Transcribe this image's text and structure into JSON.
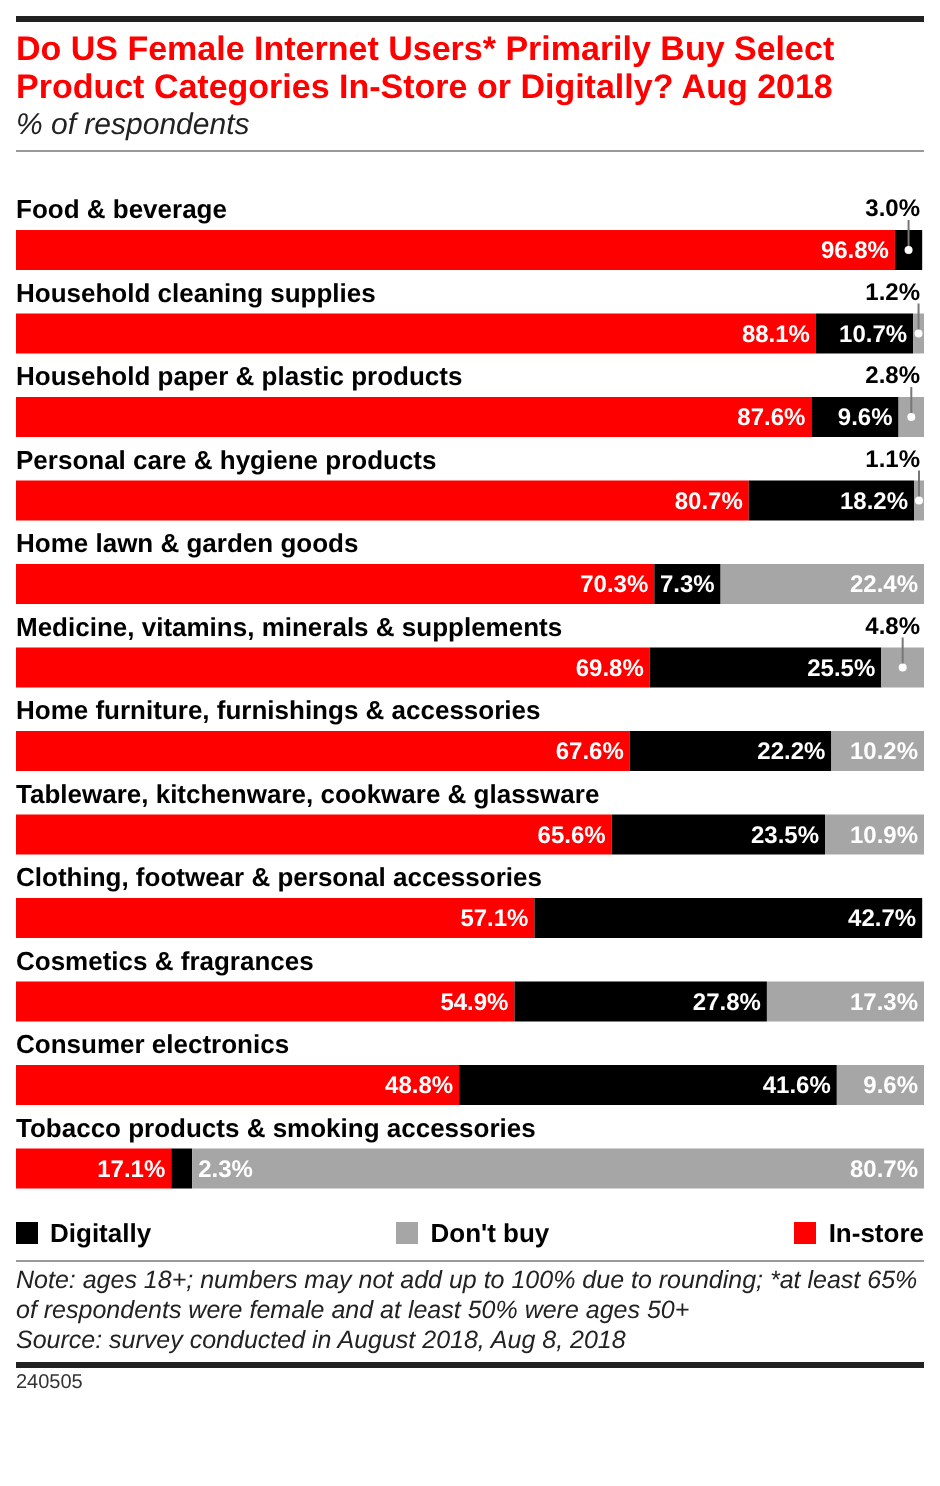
{
  "chart_data": {
    "type": "bar",
    "orientation": "horizontal",
    "stacked": true,
    "title": "Do US Female Internet Users* Primarily Buy Select Product Categories In-Store or Digitally? Aug 2018",
    "subtitle": "% of respondents",
    "categories": [
      "Food & beverage",
      "Household cleaning supplies",
      "Household paper & plastic products",
      "Personal care & hygiene products",
      "Home lawn & garden goods",
      "Medicine, vitamins, minerals & supplements",
      "Home furniture, furnishings & accessories",
      "Tableware, kitchenware, cookware & glassware",
      "Clothing, footwear & personal accessories",
      "Cosmetics & fragrances",
      "Consumer electronics",
      "Tobacco products & smoking accessories"
    ],
    "series": [
      {
        "name": "In-store",
        "color": "#ff0000",
        "values": [
          96.8,
          88.1,
          87.6,
          80.7,
          70.3,
          69.8,
          67.6,
          65.6,
          57.1,
          54.9,
          48.8,
          17.1
        ],
        "value_labels": [
          "96.8%",
          "88.1%",
          "87.6%",
          "80.7%",
          "70.3%",
          "69.8%",
          "67.6%",
          "65.6%",
          "57.1%",
          "54.9%",
          "48.8%",
          "17.1%"
        ]
      },
      {
        "name": "Digitally",
        "color": "#000000",
        "values": [
          3.0,
          10.7,
          9.6,
          18.2,
          7.3,
          25.5,
          22.2,
          23.5,
          42.7,
          27.8,
          41.6,
          2.3
        ],
        "value_labels": [
          "3.0%",
          "10.7%",
          "9.6%",
          "18.2%",
          "7.3%",
          "25.5%",
          "22.2%",
          "23.5%",
          "42.7%",
          "27.8%",
          "41.6%",
          "2.3%"
        ]
      },
      {
        "name": "Don't buy",
        "color": "#a6a6a6",
        "values": [
          null,
          1.2,
          2.8,
          1.1,
          22.4,
          4.8,
          10.2,
          10.9,
          null,
          17.3,
          9.6,
          80.7
        ],
        "value_labels": [
          null,
          "1.2%",
          "2.8%",
          "1.1%",
          "22.4%",
          "4.8%",
          "10.2%",
          "10.9%",
          null,
          "17.3%",
          "9.6%",
          "80.7%"
        ]
      }
    ],
    "xlim": [
      0,
      100
    ],
    "tick_labels": "y",
    "legend": "bottom",
    "grid": false,
    "annotations": [
      "Note: ages 18+; numbers may not add up to 100% due to rounding; *at least 65% of respondents were female and at least 50% were ages 50+",
      "Source: survey conducted in August 2018, Aug 8, 2018",
      "240505"
    ]
  }
}
